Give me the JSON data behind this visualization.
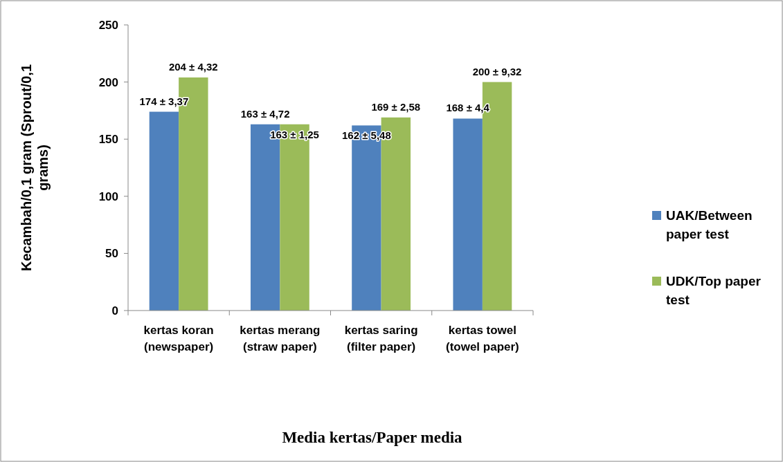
{
  "chart_data": {
    "type": "bar",
    "xlabel": "Media kertas/Paper media",
    "ylabel": "Kecambah/0,1 gram (Sprout/0,1 grams)",
    "categories": [
      "kertas koran (newspaper)",
      "kertas merang (straw paper)",
      "kertas saring (filter paper)",
      "kertas towel (towel paper)"
    ],
    "series": [
      {
        "name": "UAK/Between paper test",
        "color": "#4f81bd",
        "values": [
          174,
          163,
          162,
          168
        ],
        "value_labels": [
          "174 ± 3,37",
          "163 ±  4,72",
          "162 ± 5,48",
          "168 ± 4,4"
        ]
      },
      {
        "name": "UDK/Top paper test",
        "color": "#9bbb59",
        "values": [
          204,
          163,
          169,
          200
        ],
        "value_labels": [
          "204  ± 4,32",
          "163 ± 1,25",
          "169 ± 2,58",
          "200 ± 9,32"
        ]
      }
    ],
    "ylim": [
      0,
      250
    ],
    "yticks": [
      0,
      50,
      100,
      150,
      200,
      250
    ],
    "grid": false,
    "legend": "right"
  }
}
